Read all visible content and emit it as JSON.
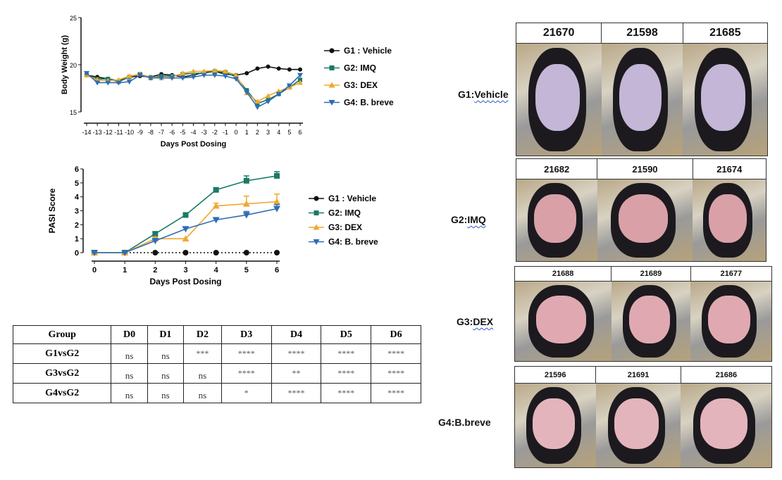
{
  "chart_data": [
    {
      "type": "line",
      "title": "",
      "xlabel": "Days Post Dosing",
      "ylabel": "Body Weight (g)",
      "x": [
        -14,
        -13,
        -12,
        -11,
        -10,
        -9,
        -8,
        -7,
        -6,
        -5,
        -4,
        -3,
        -2,
        -1,
        0,
        1,
        2,
        3,
        4,
        5,
        6
      ],
      "xtick_labels": [
        "-14",
        "-13",
        "-12",
        "-11",
        "-10",
        "-9",
        "-8",
        "-7",
        "-6",
        "-5",
        "-4",
        "-3",
        "-2",
        "-1",
        "0",
        "1",
        "2",
        "3",
        "4",
        "5",
        "6"
      ],
      "yticks": [
        15,
        20,
        25
      ],
      "ylim": [
        15,
        25
      ],
      "legend_position": "right",
      "series": [
        {
          "name": "G1 : Vehicle",
          "color": "#111111",
          "marker": "circle",
          "values": [
            18.9,
            18.7,
            18.5,
            18.3,
            18.7,
            18.8,
            18.7,
            19.0,
            18.9,
            18.7,
            18.9,
            19.2,
            19.3,
            19.0,
            18.9,
            19.1,
            19.6,
            19.8,
            19.6,
            19.5,
            19.5
          ]
        },
        {
          "name": "G2: IMQ",
          "color": "#1a7a66",
          "marker": "square",
          "values": [
            18.9,
            18.5,
            18.5,
            18.2,
            18.7,
            19.0,
            18.6,
            18.8,
            18.8,
            19.0,
            19.1,
            19.1,
            19.3,
            19.2,
            18.7,
            17.3,
            15.9,
            16.3,
            16.9,
            17.6,
            18.4
          ]
        },
        {
          "name": "G3: DEX",
          "color": "#f0a830",
          "marker": "triangle-up",
          "values": [
            18.9,
            18.4,
            18.3,
            18.4,
            18.8,
            19.0,
            18.7,
            18.6,
            18.7,
            19.1,
            19.3,
            19.3,
            19.4,
            19.3,
            18.9,
            17.0,
            16.1,
            16.7,
            17.2,
            17.6,
            18.1
          ]
        },
        {
          "name": "G4: B. breve",
          "color": "#2e6db4",
          "marker": "triangle-down",
          "values": [
            19.1,
            18.1,
            18.1,
            18.1,
            18.2,
            18.9,
            18.6,
            18.6,
            18.6,
            18.6,
            18.7,
            18.9,
            18.9,
            18.8,
            18.5,
            17.1,
            15.5,
            16.1,
            16.9,
            17.8,
            18.9
          ]
        }
      ]
    },
    {
      "type": "line",
      "title": "",
      "xlabel": "Days Post Dosing",
      "ylabel": "PASI Score",
      "x": [
        0,
        1,
        2,
        3,
        4,
        5,
        6
      ],
      "xtick_labels": [
        "0",
        "1",
        "2",
        "3",
        "4",
        "5",
        "6"
      ],
      "yticks": [
        0,
        1,
        2,
        3,
        4,
        5,
        6
      ],
      "ylim": [
        0,
        6
      ],
      "legend_position": "right",
      "series": [
        {
          "name": "G1 : Vehicle",
          "color": "#111111",
          "marker": "circle",
          "dotted": true,
          "values": [
            0,
            0,
            0,
            0,
            0,
            0,
            0
          ]
        },
        {
          "name": "G2: IMQ",
          "color": "#1a7a66",
          "marker": "square",
          "values": [
            0,
            0,
            1.35,
            2.7,
            4.5,
            5.15,
            5.5
          ],
          "errors": [
            0,
            0,
            0.15,
            0.12,
            0.12,
            0.35,
            0.3
          ]
        },
        {
          "name": "G3: DEX",
          "color": "#f0a830",
          "marker": "triangle-up",
          "values": [
            0,
            0,
            1.0,
            1.0,
            3.35,
            3.5,
            3.65
          ],
          "errors": [
            0,
            0,
            0.1,
            0,
            0.2,
            0.55,
            0.55
          ]
        },
        {
          "name": "G4: B. breve",
          "color": "#2e6db4",
          "marker": "triangle-down",
          "values": [
            0,
            0,
            0.85,
            1.7,
            2.35,
            2.7,
            3.15
          ],
          "errors": [
            0,
            0,
            0.05,
            0.1,
            0.1,
            0.25,
            0.3
          ]
        }
      ]
    }
  ],
  "stats_table": {
    "headers": [
      "Group",
      "D0",
      "D1",
      "D2",
      "D3",
      "D4",
      "D5",
      "D6"
    ],
    "rows": [
      [
        "G1vsG2",
        "ns",
        "ns",
        "***",
        "****",
        "****",
        "****",
        "****"
      ],
      [
        "G3vsG2",
        "ns",
        "ns",
        "ns",
        "****",
        "**",
        "****",
        "****"
      ],
      [
        "G4vsG2",
        "ns",
        "ns",
        "ns",
        "*",
        "****",
        "****",
        "****"
      ]
    ]
  },
  "photo_groups": [
    {
      "label": "G1:Vehicle",
      "prefix": "G1:",
      "word": "Vehicle",
      "ids": [
        "21670",
        "21598",
        "21685"
      ],
      "belly": "#c3b6d6"
    },
    {
      "label": "G2:IMQ",
      "prefix": "G2:",
      "word": "IMQ",
      "ids": [
        "21682",
        "21590",
        "21674"
      ],
      "belly": "#d9a0a8"
    },
    {
      "label": "G3:DEX",
      "prefix": "G3:",
      "word": "DEX",
      "ids": [
        "21688",
        "21689",
        "21677"
      ],
      "belly": "#e0a9b2"
    },
    {
      "label": "G4:B.breve",
      "prefix": "G4:B.breve",
      "word": "",
      "ids": [
        "21596",
        "21691",
        "21686"
      ],
      "belly": "#e4b4bc"
    }
  ]
}
